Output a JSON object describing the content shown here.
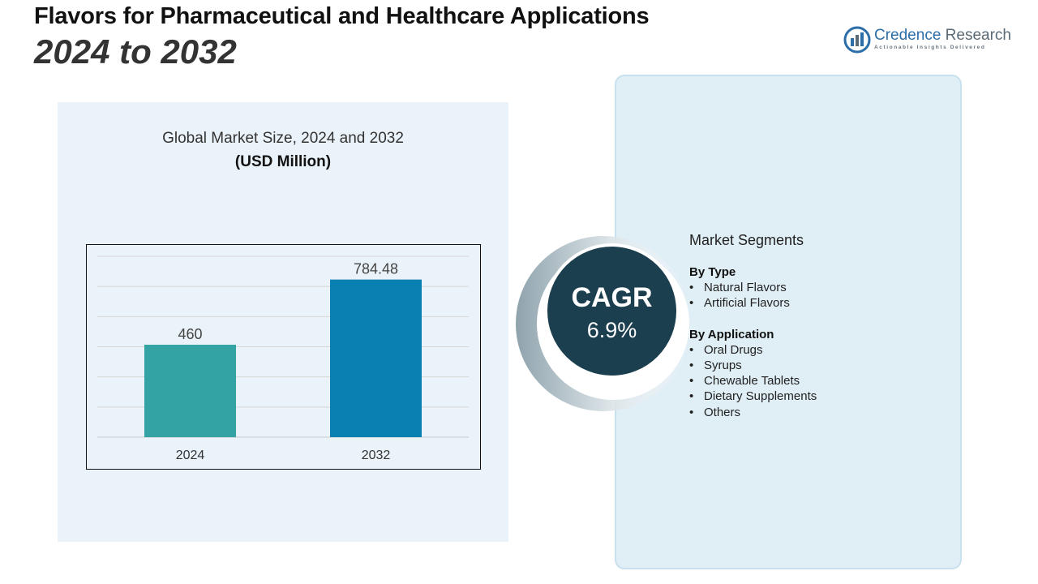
{
  "header": {
    "title": "Flavors for Pharmaceutical and Healthcare Applications",
    "subtitle": "2024 to 2032"
  },
  "logo": {
    "name_part1": "Credence",
    "name_part2": "Research",
    "tagline": "Actionable Insights Delivered",
    "icon": "bar-chart-logo-icon"
  },
  "chart_panel": {
    "title": "Global Market Size, 2024 and 2032",
    "unit": "(USD Million)"
  },
  "chart_data": {
    "type": "bar",
    "categories": [
      "2024",
      "2032"
    ],
    "values": [
      460,
      784.48
    ],
    "value_labels": [
      "460",
      "784.48"
    ],
    "colors": [
      "#33a3a3",
      "#0a7fb2"
    ],
    "ylim": [
      0,
      900
    ],
    "grid": true,
    "title": "Global Market Size, 2024 and 2032",
    "ylabel": "(USD Million)"
  },
  "cagr": {
    "label": "CAGR",
    "value": "6.9%"
  },
  "segments": {
    "title": "Market Segments",
    "groups": [
      {
        "heading": "By Type",
        "items": [
          "Natural Flavors",
          "Artificial Flavors"
        ]
      },
      {
        "heading": "By Application",
        "items": [
          "Oral Drugs",
          "Syrups",
          "Chewable Tablets",
          "Dietary Supplements",
          "Others"
        ]
      }
    ]
  },
  "colors": {
    "panel_left": "#eaf3f9",
    "panel_right": "#e0eef5",
    "cagr_circle": "#1b3f4f",
    "brand_blue": "#2b6ea8"
  }
}
